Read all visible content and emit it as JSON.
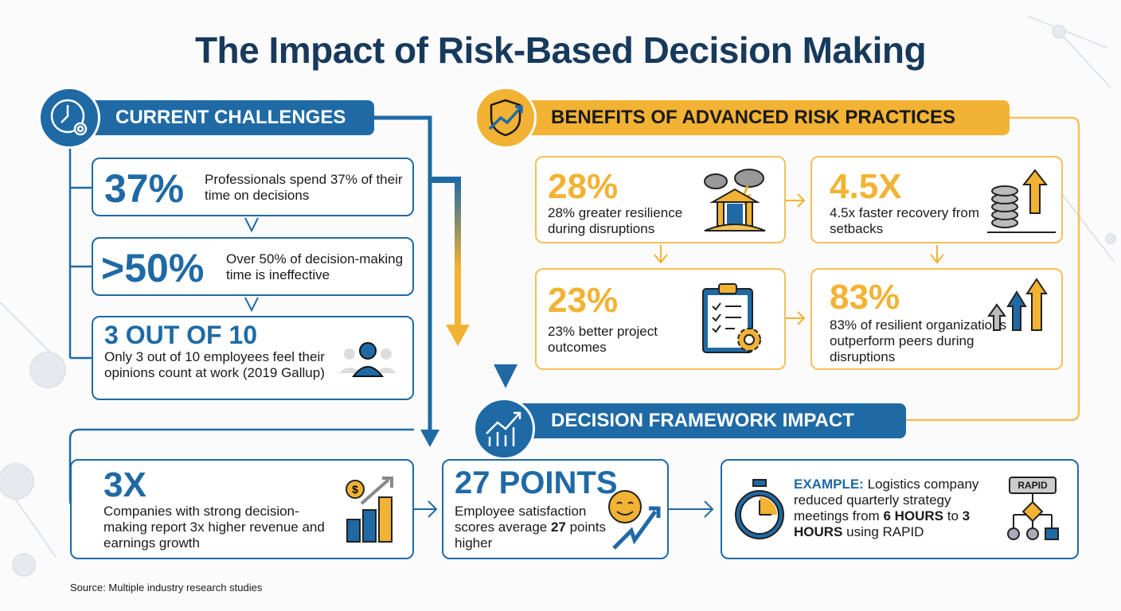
{
  "title": "The Impact of Risk-Based Decision Making",
  "challenges": {
    "header": "CURRENT CHALLENGES",
    "icon": "clock-gear-icon",
    "items": [
      {
        "stat": "37%",
        "text": "Professionals spend 37% of their time on decisions"
      },
      {
        "stat": ">50%",
        "text": "Over 50% of decision-making time is ineffective"
      },
      {
        "stat": "3 OUT OF 10",
        "text": "Only 3 out of 10 employees feel their opinions count at work (2019 Gallup)",
        "icon": "people-icon"
      }
    ]
  },
  "benefits": {
    "header": "BENEFITS OF ADVANCED RISK PRACTICES",
    "icon": "shield-growth-icon",
    "items": [
      {
        "stat": "28%",
        "text": "28% greater resilience during disruptions",
        "icon": "storm-building-icon"
      },
      {
        "stat": "4.5X",
        "text": "4.5x faster recovery from setbacks",
        "icon": "coin-stack-arrow-icon"
      },
      {
        "stat": "23%",
        "text": "23% better project outcomes",
        "icon": "clipboard-gear-icon"
      },
      {
        "stat": "83%",
        "text": "83% of resilient organizations outperform peers during disruptions",
        "icon": "rising-arrows-icon"
      }
    ]
  },
  "framework": {
    "header": "DECISION FRAMEWORK IMPACT",
    "icon": "growth-chart-icon",
    "items": [
      {
        "stat": "3X",
        "text": "Companies with strong decision-making report 3x higher revenue and earnings growth",
        "icon": "coins-chart-icon"
      },
      {
        "stat": "27 POINTS",
        "text_pre": "Employee satisfaction scores average ",
        "text_bold": "27",
        "text_post": " points higher",
        "icon": "smiley-arrow-icon"
      },
      {
        "label": "EXAMPLE:",
        "text_a": " Logistics company reduced quarterly strategy meetings from ",
        "bold_a": "6 HOURS",
        "text_b": " to ",
        "bold_b": "3 HOURS",
        "text_c": " using RAPID",
        "rapid_label": "RAPID",
        "icon": "stopwatch-icon"
      }
    ]
  },
  "source": "Source: Multiple industry research studies",
  "colors": {
    "blue": "#1f6aa5",
    "yellow": "#f2b233",
    "navy": "#173a5c"
  }
}
